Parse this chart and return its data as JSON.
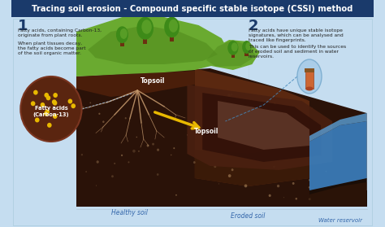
{
  "title": "Tracing soil erosion - Compound specific stable isotope (CSSI) method",
  "title_bg": "#1a3a6b",
  "title_color": "#ffffff",
  "bg_color": "#c5ddf0",
  "section1_num": "1",
  "section1_text1": "Fatty acids, containing Carbon-13,\noriginate from plant roots.",
  "section1_text2": "When plant tissues decay,\nthe fatty acids become part\nof the soil organic matter.",
  "section2_num": "2",
  "section2_text1": "Fatty acids have unique stable isotope\nsignatures, which can be analysed and\ntraced like fingerprints.",
  "section2_text2": "This can be used to identify the sources\nof eroded soil and sediment in water\nreservoirs.",
  "label_topsoil1": "Topsoil",
  "label_topsoil2": "Topsoil",
  "label_fatty": "Fatty acids\n(Carbon-13)",
  "label_healthy": "Healthy soil",
  "label_eroded": "Eroded soil",
  "label_water": "Water reservoir",
  "dark_blue": "#1a3a6b",
  "soil_darkest": "#1a0d06",
  "soil_dark": "#2a1208",
  "soil_brown": "#4a1e0a",
  "soil_mid": "#6b3010",
  "soil_light": "#8b4520",
  "grass_green": "#6aaa30",
  "grass_dark": "#3d8a18",
  "grass_mid": "#559020",
  "water_blue": "#3a80c0",
  "water_dark": "#1a5090",
  "circle_bg": "#5a2510",
  "text_dark": "#1a3a6b",
  "white": "#ffffff",
  "yellow": "#e8b800",
  "label_color": "#3366aa",
  "text_color": "#222222"
}
